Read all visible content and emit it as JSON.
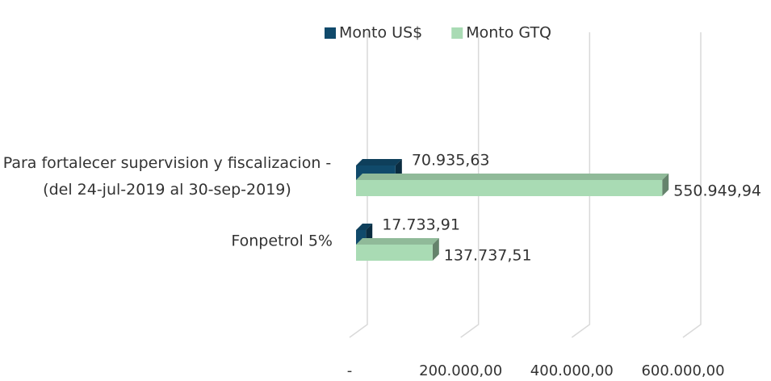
{
  "chart_data": {
    "type": "bar3d_horizontal",
    "categories": [
      "Para fortalecer supervision y fiscalizacion -(del 24-jul-2019 al 30-sep-2019)",
      "Fonpetrol 5%"
    ],
    "series": [
      {
        "name": "Monto US$",
        "color": "#104a6b",
        "values": [
          70935.63,
          17733.91
        ],
        "value_labels": [
          "70.935,63",
          "17.733,91"
        ]
      },
      {
        "name": "Monto GTQ",
        "color": "#a9dbb4",
        "values": [
          550949.94,
          137737.51
        ],
        "value_labels": [
          "550.949,94",
          "137.737,51"
        ]
      }
    ],
    "xlim": [
      0,
      600000
    ],
    "xticks": [
      {
        "value": 0,
        "label": "-"
      },
      {
        "value": 200000,
        "label": "200.000,00"
      },
      {
        "value": 400000,
        "label": "400.000,00"
      },
      {
        "value": 600000,
        "label": "600.000,00"
      }
    ],
    "grid": true,
    "legend": "top"
  }
}
